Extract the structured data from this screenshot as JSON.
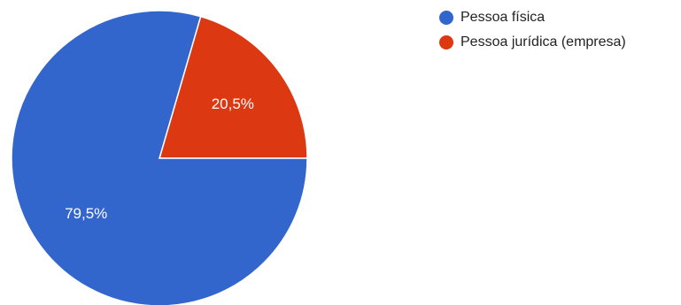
{
  "chart_data": {
    "type": "pie",
    "title": "",
    "legend_position": "top-right",
    "series": [
      {
        "name": "",
        "slices": [
          {
            "label": "Pessoa física",
            "value": 79.5,
            "value_label": "79,5%",
            "color": "#3366cc"
          },
          {
            "label": "Pessoa jurídica (empresa)",
            "value": 20.5,
            "value_label": "20,5%",
            "color": "#dc3912"
          }
        ]
      }
    ]
  }
}
